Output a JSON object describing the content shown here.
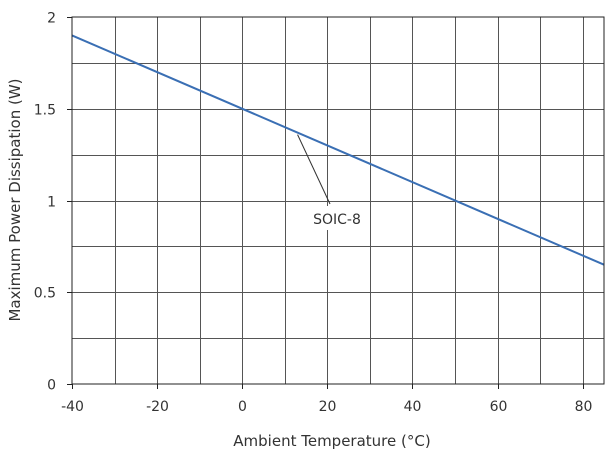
{
  "chart_data": {
    "type": "line",
    "title": "",
    "xlabel": "Ambient Temperature (°C)",
    "ylabel": "Maximum Power Dissipation (W)",
    "xlim": [
      -40,
      85
    ],
    "ylim": [
      0,
      2
    ],
    "x_ticks": [
      -40,
      -20,
      0,
      20,
      40,
      60,
      80
    ],
    "x_tick_labels": [
      "-40",
      "-20",
      "0",
      "20",
      "40",
      "60",
      "80"
    ],
    "y_ticks": [
      0,
      0.5,
      1,
      1.5,
      2
    ],
    "y_tick_labels": [
      "0",
      "0.5",
      "1",
      "1.5",
      "2"
    ],
    "x_grid_step": 10,
    "y_grid_step": 0.25,
    "grid": true,
    "legend": "none",
    "series": [
      {
        "name": "SOIC-8",
        "x": [
          -40,
          85
        ],
        "y": [
          1.9,
          0.65
        ],
        "color": "#3a6fb4"
      }
    ],
    "annotations": [
      {
        "text": "SOIC-8",
        "points_to": {
          "x": 13,
          "y": 1.37
        }
      }
    ]
  }
}
